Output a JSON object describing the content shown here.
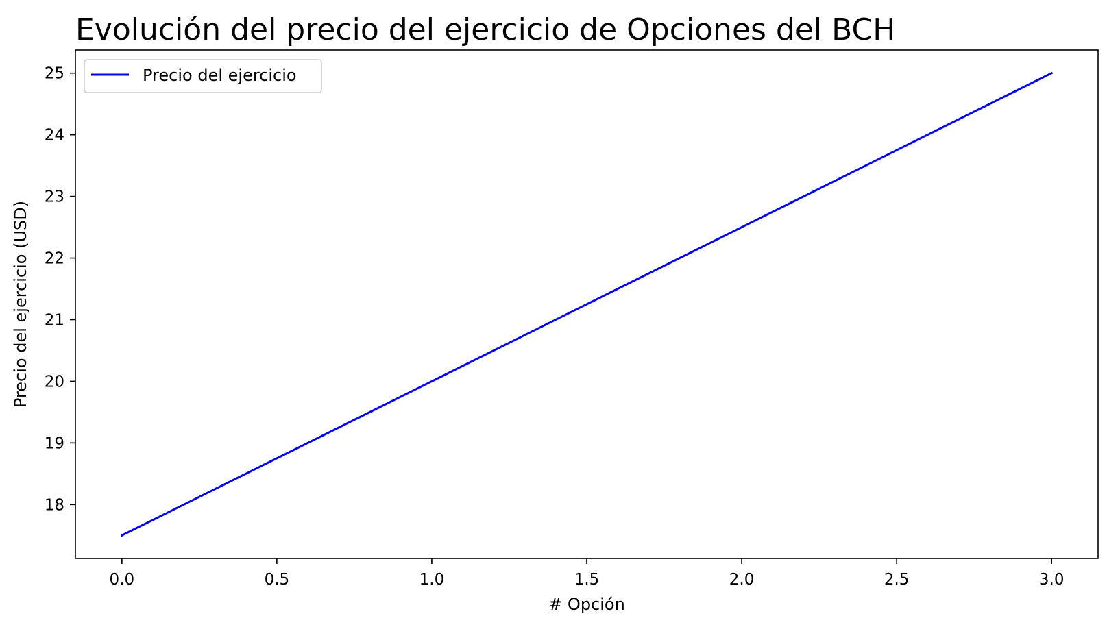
{
  "chart_data": {
    "type": "line",
    "title": "Evolución del precio del ejercicio de Opciones del BCH",
    "xlabel": "# Opción",
    "ylabel": "Precio del ejercicio (USD)",
    "xlim": [
      -0.15,
      3.15
    ],
    "ylim": [
      17.125,
      25.375
    ],
    "xticks": [
      0.0,
      0.5,
      1.0,
      1.5,
      2.0,
      2.5,
      3.0
    ],
    "xtick_labels": [
      "0.0",
      "0.5",
      "1.0",
      "1.5",
      "2.0",
      "2.5",
      "3.0"
    ],
    "yticks": [
      18,
      19,
      20,
      21,
      22,
      23,
      24,
      25
    ],
    "ytick_labels": [
      "18",
      "19",
      "20",
      "21",
      "22",
      "23",
      "24",
      "25"
    ],
    "grid": false,
    "legend_position": "top-left",
    "series": [
      {
        "name": "Precio del ejercicio",
        "color": "#0000ff",
        "x": [
          0,
          1,
          2,
          3
        ],
        "y": [
          17.5,
          20,
          22.5,
          25
        ]
      }
    ]
  }
}
